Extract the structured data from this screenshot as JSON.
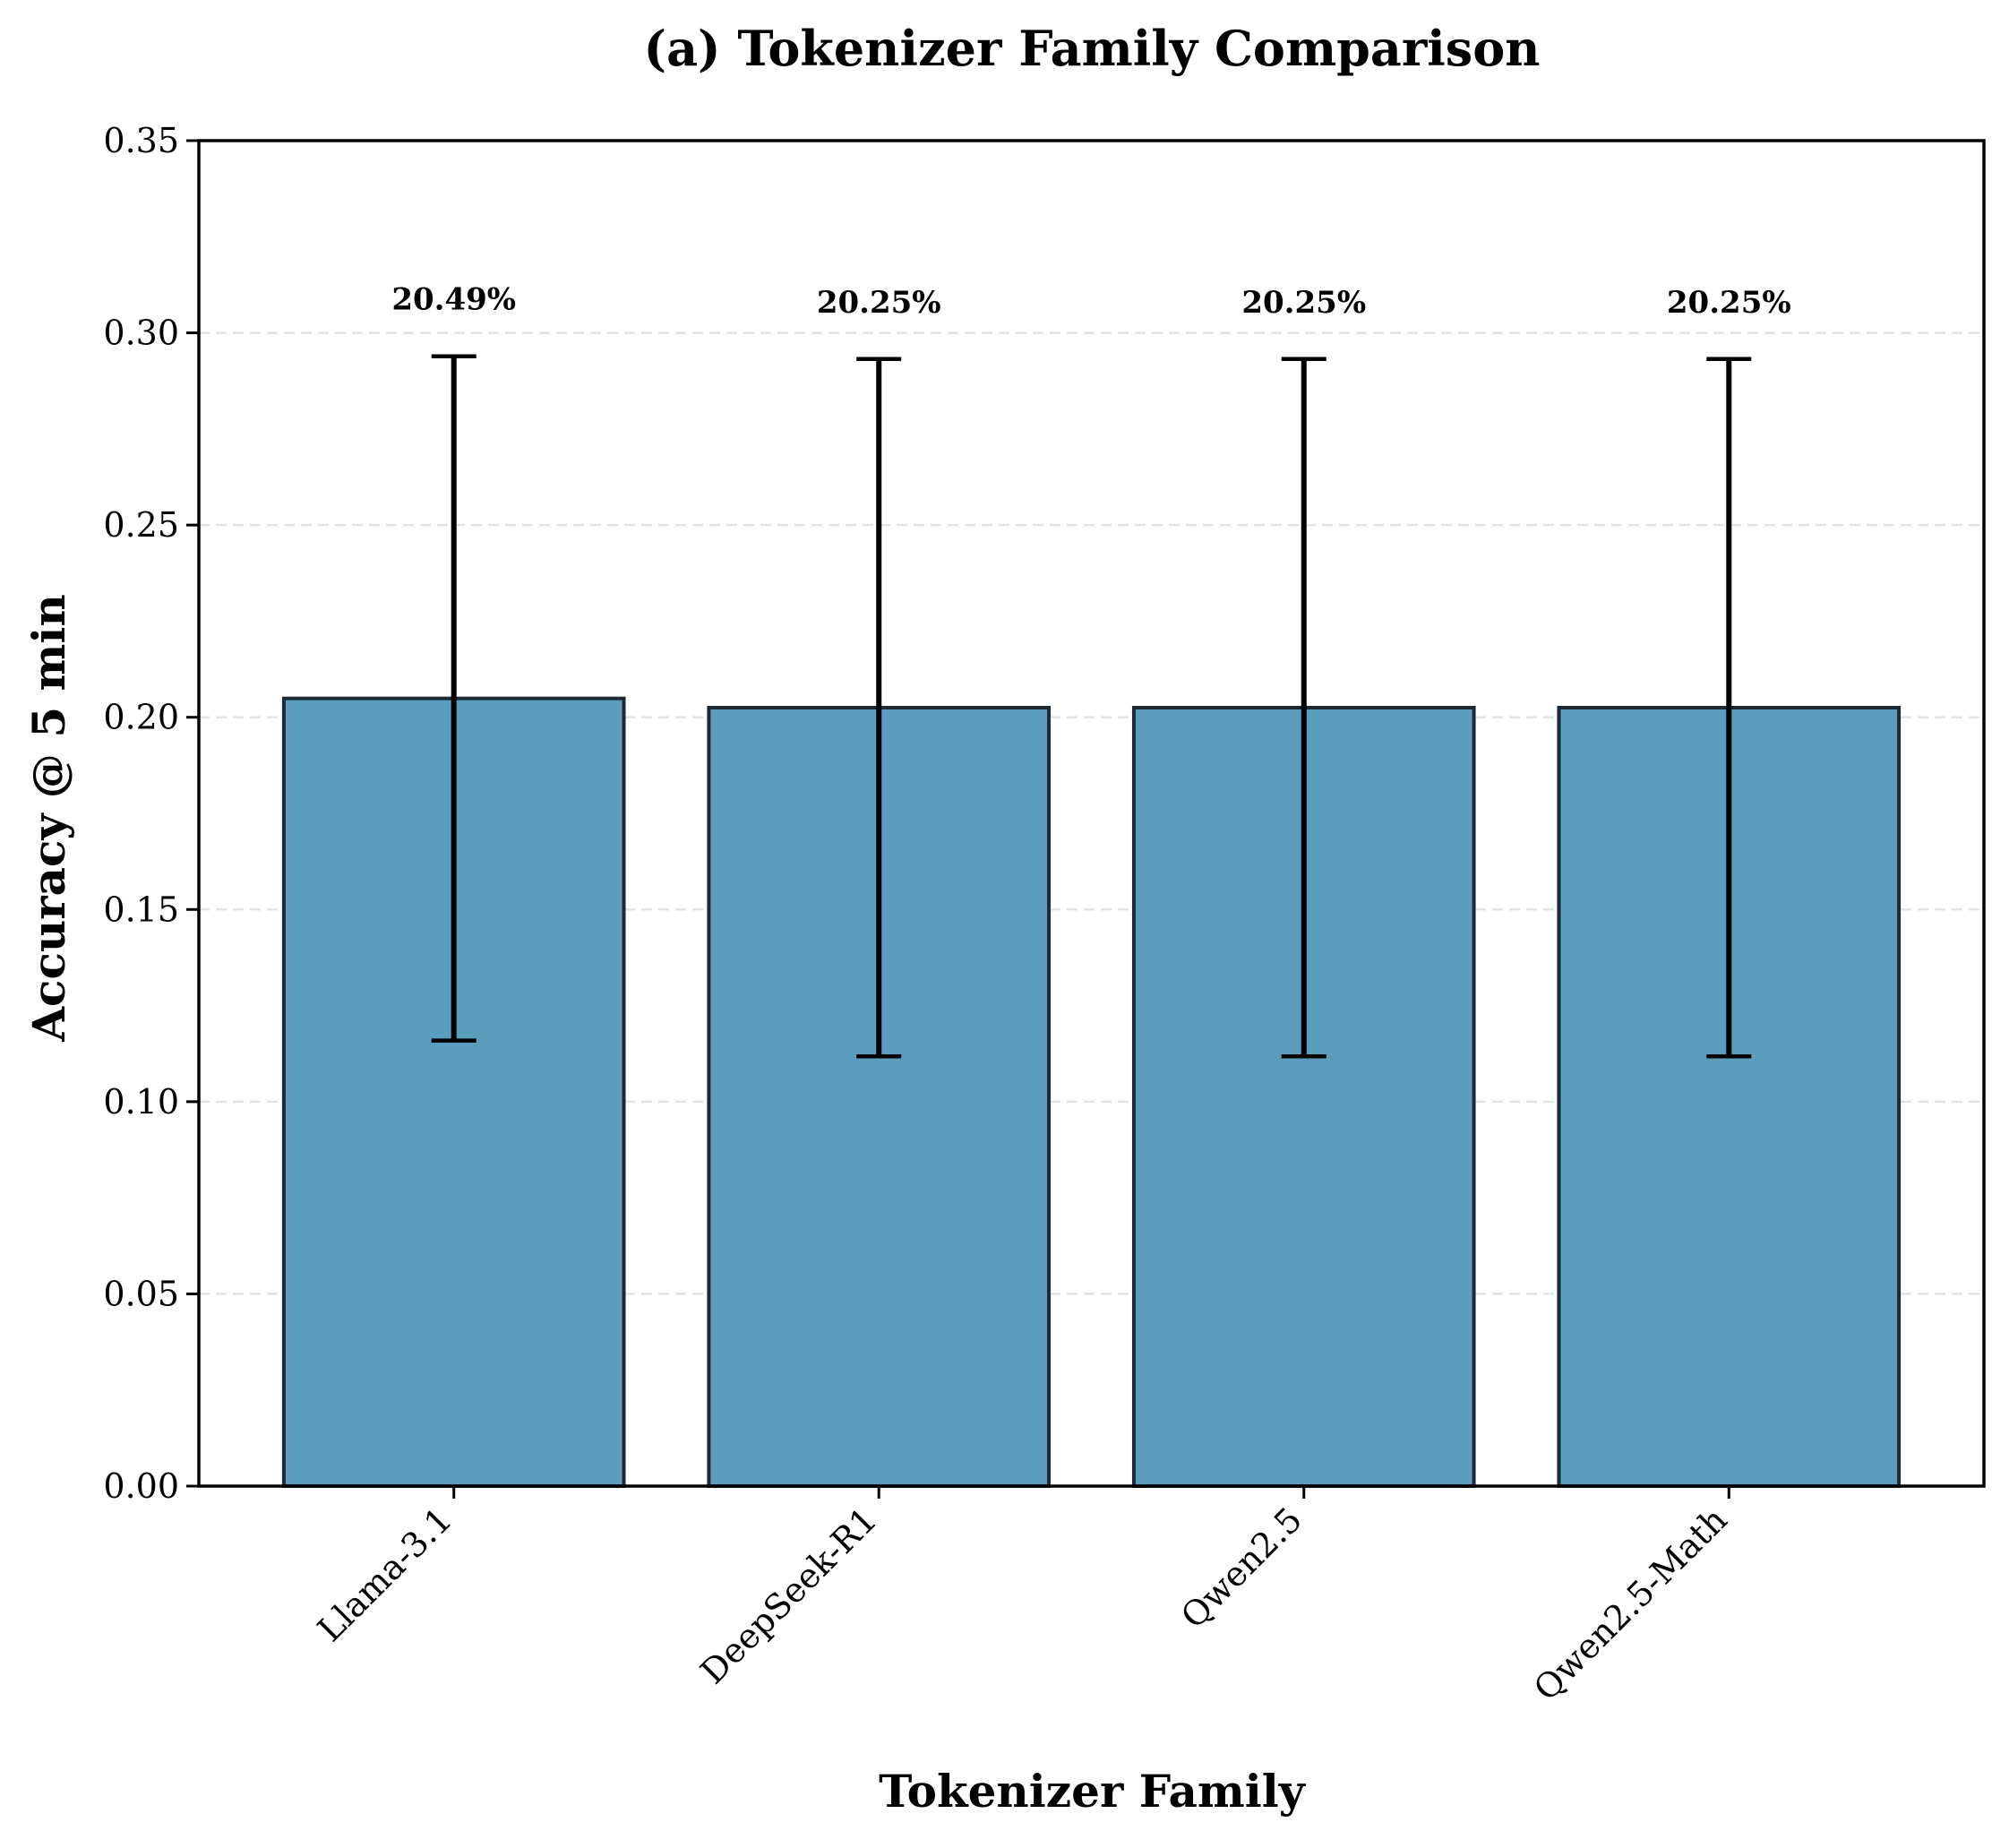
{
  "chart_data": {
    "type": "bar",
    "title": "(a) Tokenizer Family Comparison",
    "xlabel": "Tokenizer Family",
    "ylabel": "Accuracy @ 5 min",
    "categories": [
      "Llama-3.1",
      "DeepSeek-R1",
      "Qwen2.5",
      "Qwen2.5-Math"
    ],
    "values": [
      0.2049,
      0.2025,
      0.2025,
      0.2025
    ],
    "error_low": [
      0.1159,
      0.1118,
      0.1118,
      0.1118
    ],
    "error_high": [
      0.2939,
      0.2932,
      0.2932,
      0.2932
    ],
    "data_labels": [
      "20.49%",
      "20.25%",
      "20.25%",
      "20.25%"
    ],
    "ylim": [
      0,
      0.35
    ],
    "yticks": [
      0.0,
      0.05,
      0.1,
      0.15,
      0.2,
      0.25,
      0.3,
      0.35
    ],
    "ytick_labels": [
      "0.00",
      "0.05",
      "0.10",
      "0.15",
      "0.20",
      "0.25",
      "0.30",
      "0.35"
    ],
    "grid": "y-dashed",
    "colors": {
      "bar_fill": "#5b9dbd",
      "bar_edge": "#1e2a33",
      "error_bar": "#000000",
      "grid": "#e3e3e3",
      "axis": "#000000"
    }
  }
}
